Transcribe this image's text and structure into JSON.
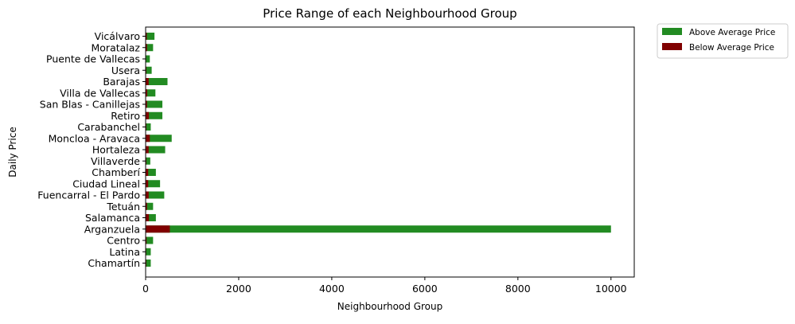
{
  "chart_data": {
    "type": "bar",
    "orientation": "horizontal",
    "stacked": true,
    "title": "Price Range of each Neighbourhood Group",
    "xlabel": "Neighbourhood Group",
    "ylabel": "Daily Price",
    "xlim": [
      0,
      10500
    ],
    "xticks": [
      0,
      2000,
      4000,
      6000,
      8000,
      10000
    ],
    "grid": false,
    "legend_position": "outside-top-right",
    "categories": [
      "Chamartín",
      "Latina",
      "Centro",
      "Arganzuela",
      "Salamanca",
      "Tetuán",
      "Fuencarral - El Pardo",
      "Ciudad Lineal",
      "Chamberí",
      "Villaverde",
      "Hortaleza",
      "Moncloa - Aravaca",
      "Carabanchel",
      "Retiro",
      "San Blas - Canillejas",
      "Villa de Vallecas",
      "Barajas",
      "Usera",
      "Puente de Vallecas",
      "Moratalaz",
      "Vicálvaro"
    ],
    "series": [
      {
        "name": "Above Average Price",
        "color": "#228b22",
        "values": [
          110,
          110,
          160,
          10000,
          220,
          160,
          400,
          310,
          220,
          100,
          420,
          560,
          110,
          360,
          360,
          210,
          470,
          130,
          90,
          160,
          190
        ]
      },
      {
        "name": "Below Average Price",
        "color": "#800000",
        "values": [
          15,
          12,
          20,
          520,
          70,
          30,
          65,
          55,
          55,
          15,
          65,
          90,
          15,
          70,
          30,
          35,
          65,
          15,
          10,
          30,
          25
        ]
      }
    ]
  }
}
